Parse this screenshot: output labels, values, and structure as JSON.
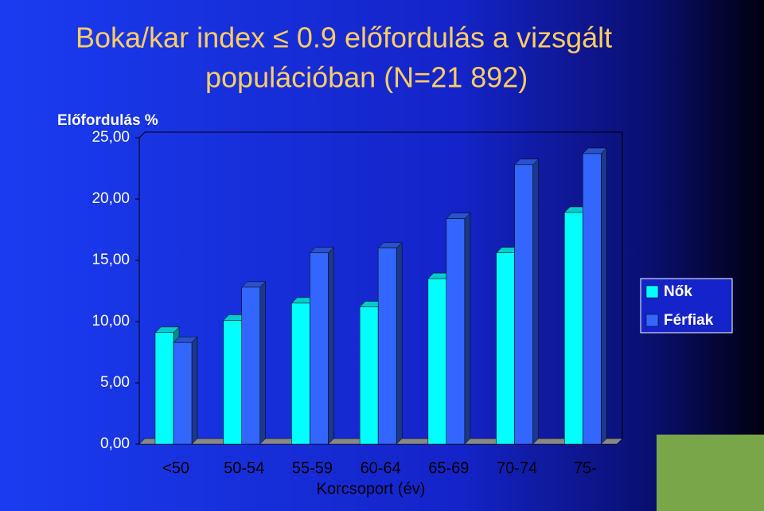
{
  "chart_data": {
    "type": "bar3d",
    "title": [
      "Boka/kar index ≤ 0.9 előfordulás a vizsgált",
      "populációban (N=21 892)"
    ],
    "y_label": "Előfordulás %",
    "x_label": "Korcsoport (év)",
    "categories": [
      "<50",
      "50-54",
      "55-59",
      "60-64",
      "65-69",
      "70-74",
      "75-"
    ],
    "series": [
      {
        "name": "Nők",
        "color": "#00ffff",
        "values": [
          9.1,
          10.1,
          11.5,
          11.2,
          13.5,
          15.6,
          18.9
        ]
      },
      {
        "name": "Férfiak",
        "color": "#3366ff",
        "values": [
          8.3,
          12.8,
          15.6,
          16.0,
          18.4,
          22.8,
          23.7
        ]
      }
    ],
    "ylim": [
      0,
      25
    ],
    "yticks": [
      {
        "value": 0,
        "label": "0,00"
      },
      {
        "value": 5,
        "label": "5,00"
      },
      {
        "value": 10,
        "label": "10,00"
      },
      {
        "value": 15,
        "label": "15,00"
      },
      {
        "value": 20,
        "label": "20,00"
      },
      {
        "value": 25,
        "label": "25,00"
      }
    ],
    "legend": "right"
  }
}
